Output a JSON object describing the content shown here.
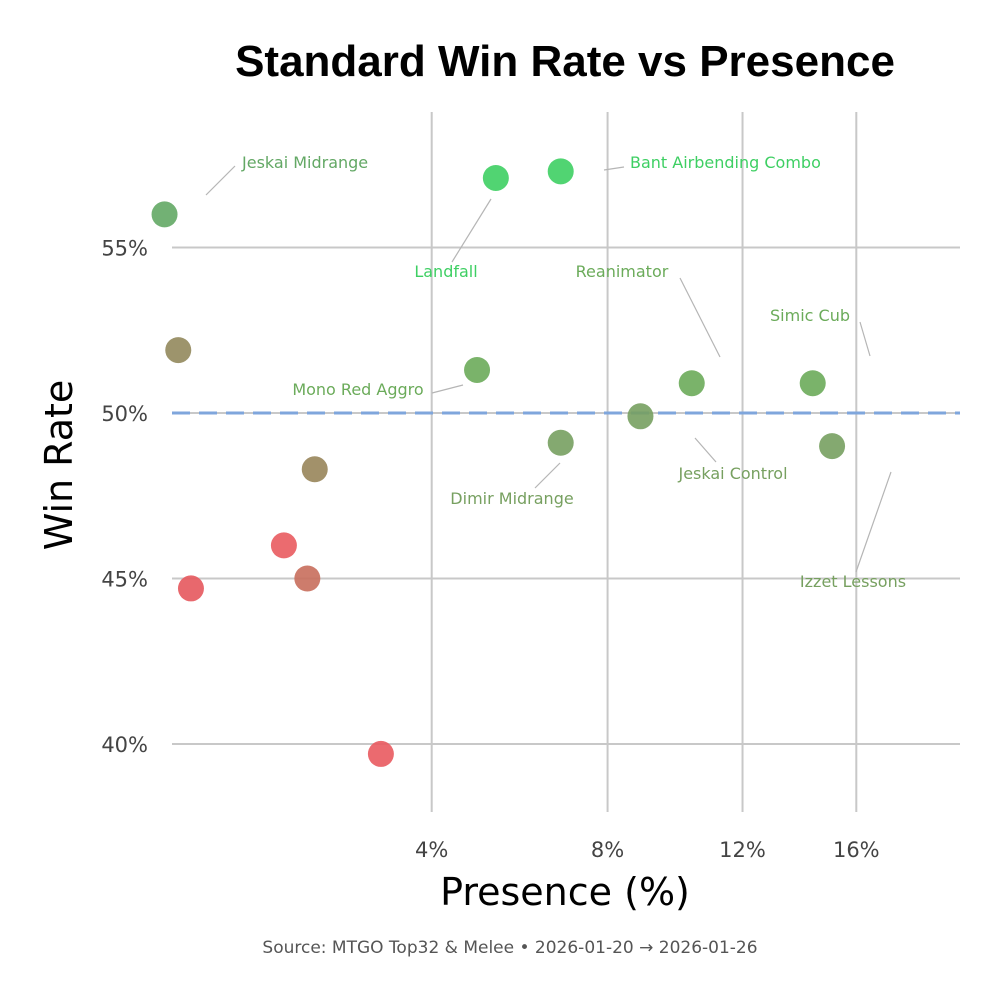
{
  "chart_data": {
    "type": "scatter",
    "title": "Standard Win Rate vs Presence",
    "xlabel": "Presence (%)",
    "ylabel": "Win Rate",
    "caption": "Source: MTGO Top32 & Melee  •  2026-01-20 → 2026-01-26",
    "x_scale": "sqrt",
    "xlim": [
      0.4,
      16.5
    ],
    "ylim": [
      38,
      59
    ],
    "x_ticks": [
      4,
      8,
      12,
      16
    ],
    "x_tick_labels": [
      "4%",
      "8%",
      "12%",
      "16%"
    ],
    "y_ticks": [
      40,
      45,
      50,
      55
    ],
    "y_tick_labels": [
      "40%",
      "45%",
      "50%",
      "55%"
    ],
    "reference_line": {
      "y": 50,
      "style": "dashed",
      "color": "#7fa6dc"
    },
    "grid": true,
    "points": [
      {
        "label": "Jeskai Midrange",
        "x": 0.55,
        "y": 56.0,
        "color": "#63a865"
      },
      {
        "label": "Landfall",
        "x": 5.3,
        "y": 57.1,
        "color": "#3ecf63"
      },
      {
        "label": "Bant Airbending Combo",
        "x": 6.8,
        "y": 57.3,
        "color": "#3ecf63"
      },
      {
        "label": "Reanimator",
        "x": 10.4,
        "y": 50.9,
        "color": "#6bab5a"
      },
      {
        "label": "Simic Cub",
        "x": 14.4,
        "y": 50.9,
        "color": "#6bab5a"
      },
      {
        "label": "Mono Red Aggro",
        "x": 4.9,
        "y": 51.3,
        "color": "#6bab5a"
      },
      {
        "label": "Jeskai Control",
        "x": 8.9,
        "y": 49.9,
        "color": "#77a060"
      },
      {
        "label": "Dimir Midrange",
        "x": 6.8,
        "y": 49.1,
        "color": "#77a060"
      },
      {
        "label": "Izzet Lessons",
        "x": 15.1,
        "y": 49.0,
        "color": "#77a060"
      },
      {
        "label": "",
        "x": 0.65,
        "y": 51.9,
        "color": "#92885c"
      },
      {
        "label": "",
        "x": 2.1,
        "y": 48.3,
        "color": "#98855a"
      },
      {
        "label": "",
        "x": 1.7,
        "y": 46.0,
        "color": "#e95b5f"
      },
      {
        "label": "",
        "x": 2.0,
        "y": 45.0,
        "color": "#c86e5c"
      },
      {
        "label": "",
        "x": 0.75,
        "y": 44.7,
        "color": "#e5585d"
      },
      {
        "label": "",
        "x": 3.1,
        "y": 39.7,
        "color": "#e95a5f"
      }
    ]
  }
}
